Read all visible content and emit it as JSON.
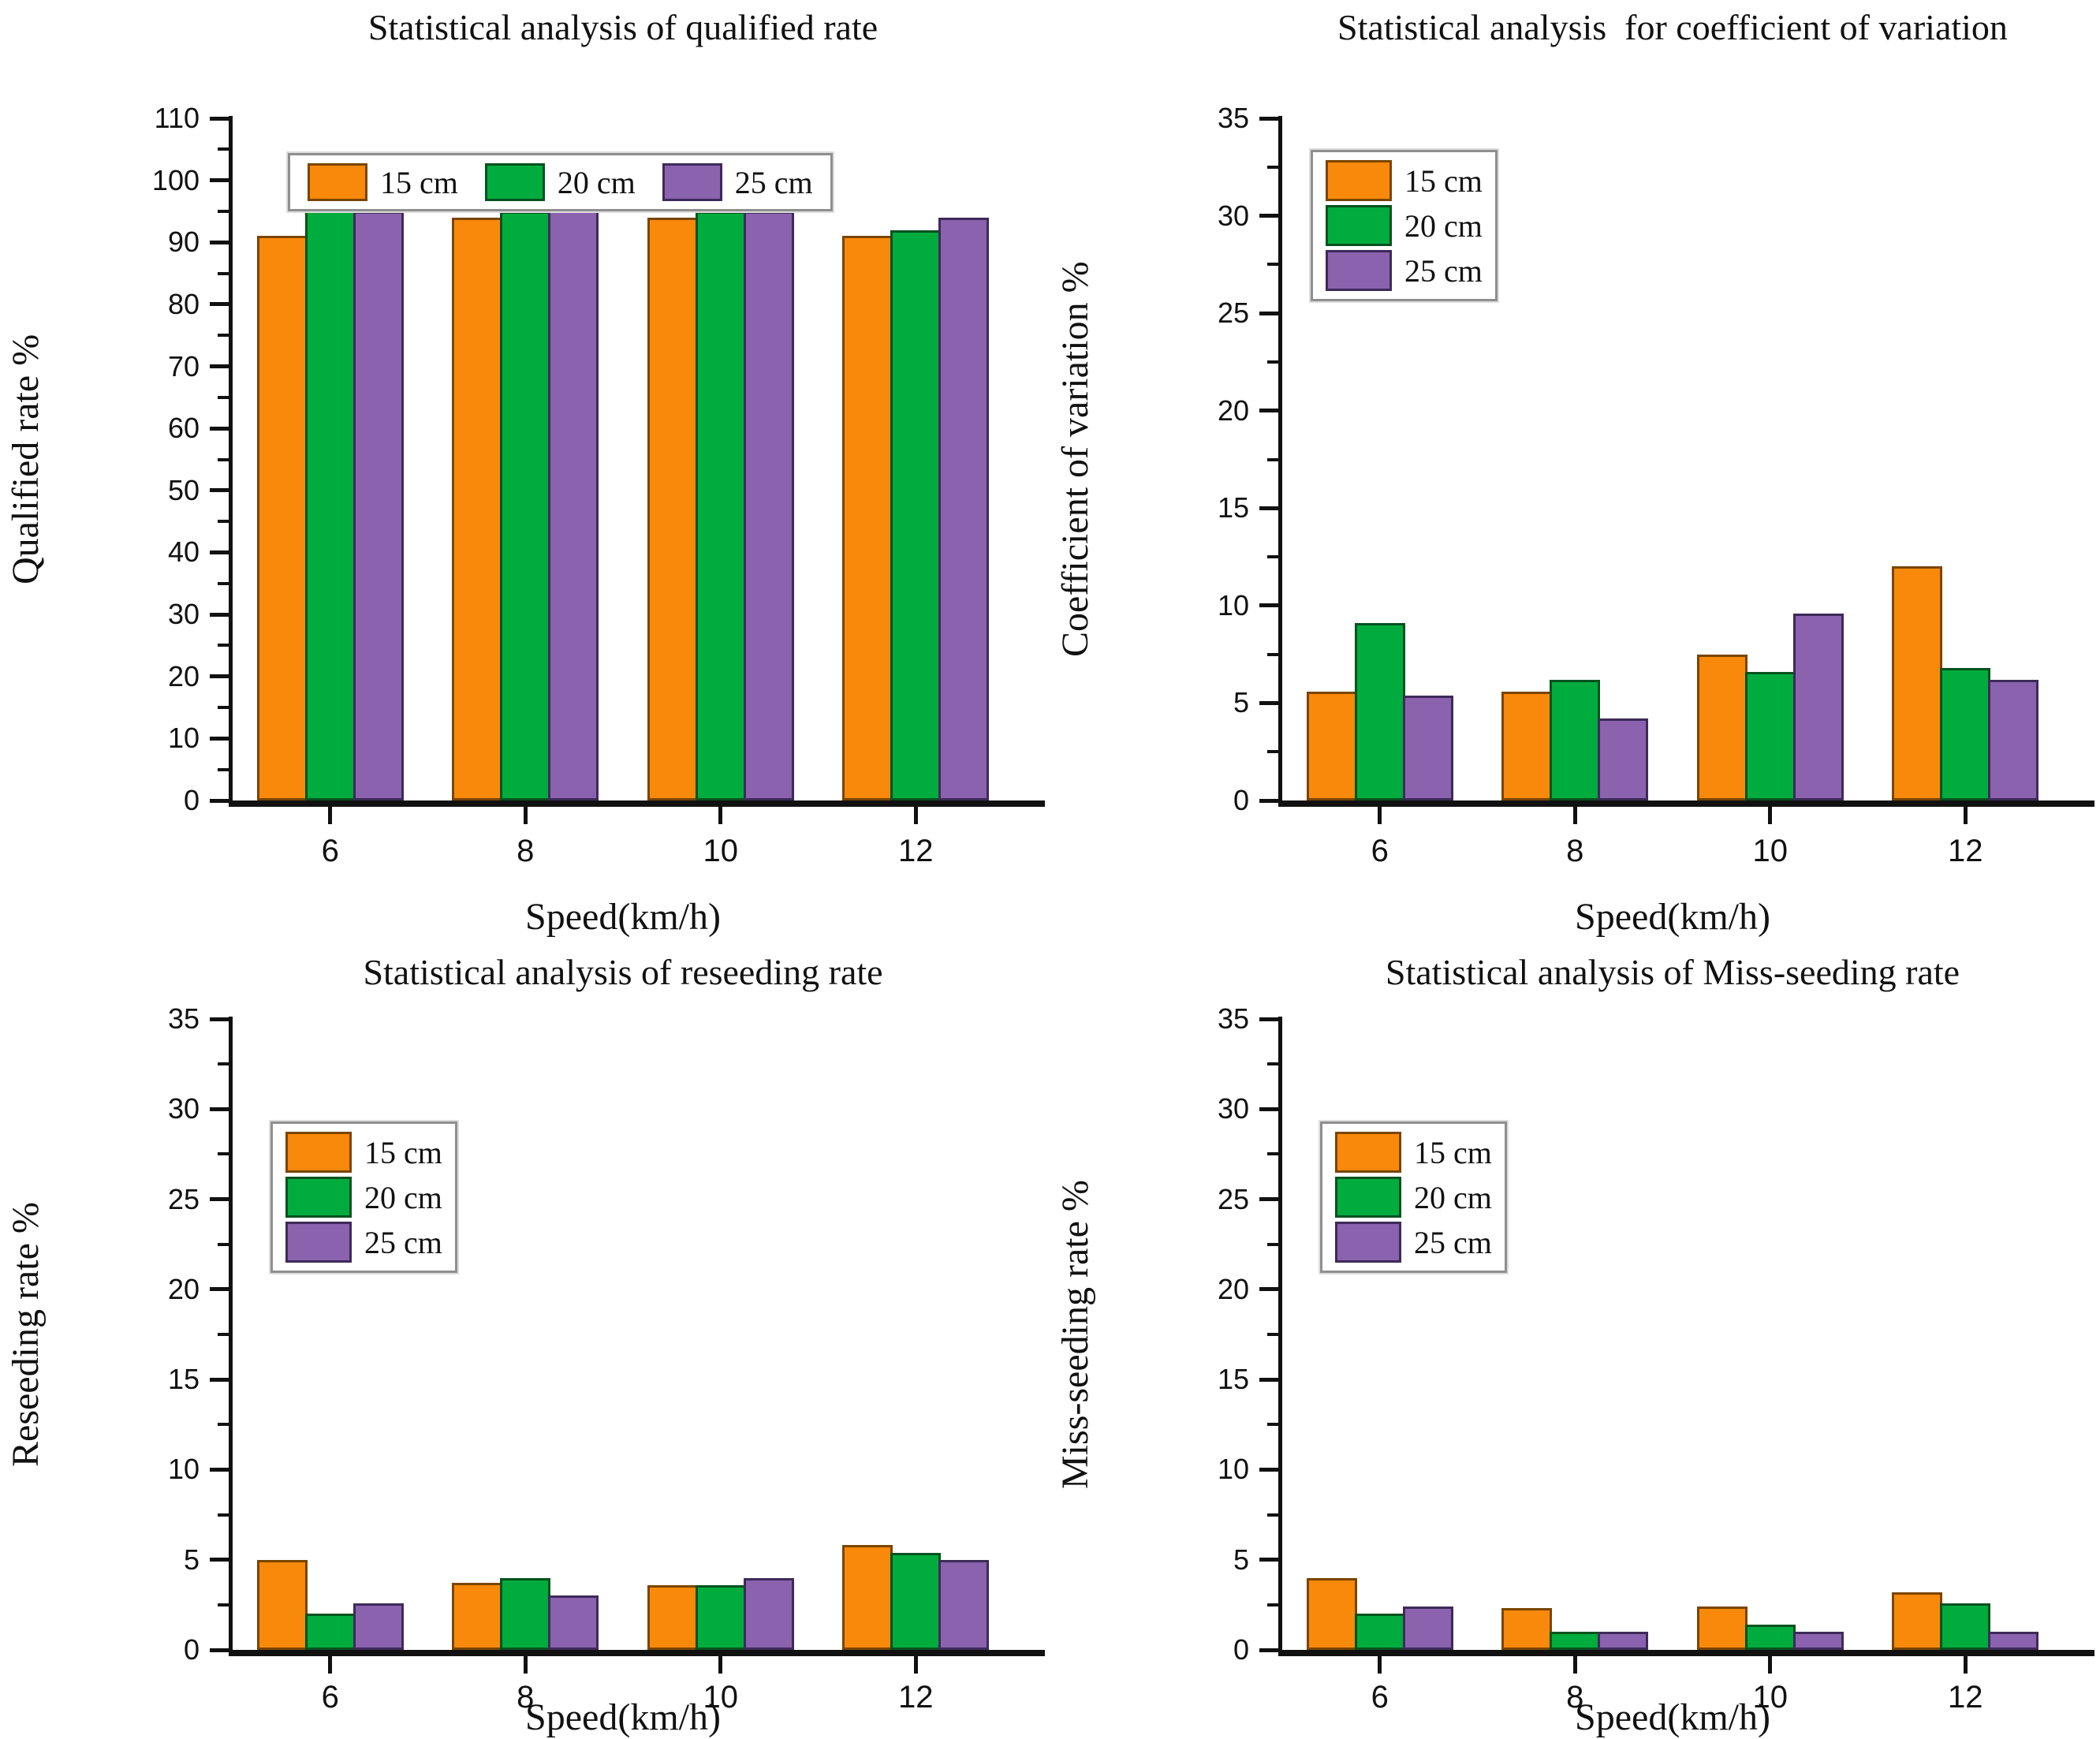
{
  "shared": {
    "xlabel": "Speed(km/h)",
    "categories": [
      "6",
      "8",
      "10",
      "12"
    ],
    "series": [
      {
        "name": "15 cm",
        "fill": "#F9890A",
        "border": "#7A4500"
      },
      {
        "name": "20 cm",
        "fill": "#01AC3E",
        "border": "#06521E"
      },
      {
        "name": "25 cm",
        "fill": "#8A62AD",
        "border": "#3E2A59"
      }
    ],
    "axis_color": "#111111"
  },
  "chart_data": [
    {
      "type": "bar",
      "title": "Statistical analysis of qualified rate",
      "ylabel": "Qualified rate %",
      "xlabel": "Speed(km/h)",
      "categories": [
        "6",
        "8",
        "10",
        "12"
      ],
      "ylim": [
        0,
        110
      ],
      "yticks": [
        0,
        10,
        20,
        30,
        40,
        50,
        60,
        70,
        80,
        90,
        100,
        110
      ],
      "grid": false,
      "legend": {
        "orientation": "horizontal",
        "position": "inside-top-left",
        "entries": [
          "15 cm",
          "20 cm",
          "25 cm"
        ]
      },
      "series": [
        {
          "name": "15 cm",
          "values": [
            91,
            94,
            94,
            91
          ]
        },
        {
          "name": "20 cm",
          "values": [
            96,
            95,
            95,
            92
          ]
        },
        {
          "name": "25 cm",
          "values": [
            95,
            96,
            95,
            94
          ]
        }
      ]
    },
    {
      "type": "bar",
      "title": "Statistical analysis  for coefficient of variation",
      "ylabel": "Coefficient of variation %",
      "xlabel": "Speed(km/h)",
      "categories": [
        "6",
        "8",
        "10",
        "12"
      ],
      "ylim": [
        0,
        35
      ],
      "yticks": [
        0,
        5,
        10,
        15,
        20,
        25,
        30,
        35
      ],
      "grid": false,
      "legend": {
        "orientation": "vertical",
        "position": "inside-top-left",
        "entries": [
          "15 cm",
          "20 cm",
          "25 cm"
        ]
      },
      "series": [
        {
          "name": "15 cm",
          "values": [
            5.6,
            5.6,
            7.5,
            12.0
          ]
        },
        {
          "name": "20 cm",
          "values": [
            9.1,
            6.2,
            6.6,
            6.8
          ]
        },
        {
          "name": "25 cm",
          "values": [
            5.4,
            4.2,
            9.6,
            6.2
          ]
        }
      ]
    },
    {
      "type": "bar",
      "title": "Statistical analysis of reseeding rate",
      "ylabel": "Reseeding rate %",
      "xlabel": "Speed(km/h)",
      "categories": [
        "6",
        "8",
        "10",
        "12"
      ],
      "ylim": [
        0,
        35
      ],
      "yticks": [
        0,
        5,
        10,
        15,
        20,
        25,
        30,
        35
      ],
      "grid": false,
      "legend": {
        "orientation": "vertical",
        "position": "inside-top-left",
        "entries": [
          "15 cm",
          "20 cm",
          "25 cm"
        ]
      },
      "series": [
        {
          "name": "15 cm",
          "values": [
            5.0,
            3.7,
            3.6,
            5.8
          ]
        },
        {
          "name": "20 cm",
          "values": [
            2.0,
            4.0,
            3.6,
            5.4
          ]
        },
        {
          "name": "25 cm",
          "values": [
            2.6,
            3.0,
            4.0,
            5.0
          ]
        }
      ]
    },
    {
      "type": "bar",
      "title": "Statistical analysis of Miss-seeding rate",
      "ylabel": "Miss-seeding rate %",
      "xlabel": "Speed(km/h)",
      "categories": [
        "6",
        "8",
        "10",
        "12"
      ],
      "ylim": [
        0,
        35
      ],
      "yticks": [
        0,
        5,
        10,
        15,
        20,
        25,
        30,
        35
      ],
      "grid": false,
      "legend": {
        "orientation": "vertical",
        "position": "inside-top-left",
        "entries": [
          "15 cm",
          "20 cm",
          "25 cm"
        ]
      },
      "series": [
        {
          "name": "15 cm",
          "values": [
            4.0,
            2.3,
            2.4,
            3.2
          ]
        },
        {
          "name": "20 cm",
          "values": [
            2.0,
            1.0,
            1.4,
            2.6
          ]
        },
        {
          "name": "25 cm",
          "values": [
            2.4,
            1.0,
            1.0,
            1.0
          ]
        }
      ]
    }
  ]
}
